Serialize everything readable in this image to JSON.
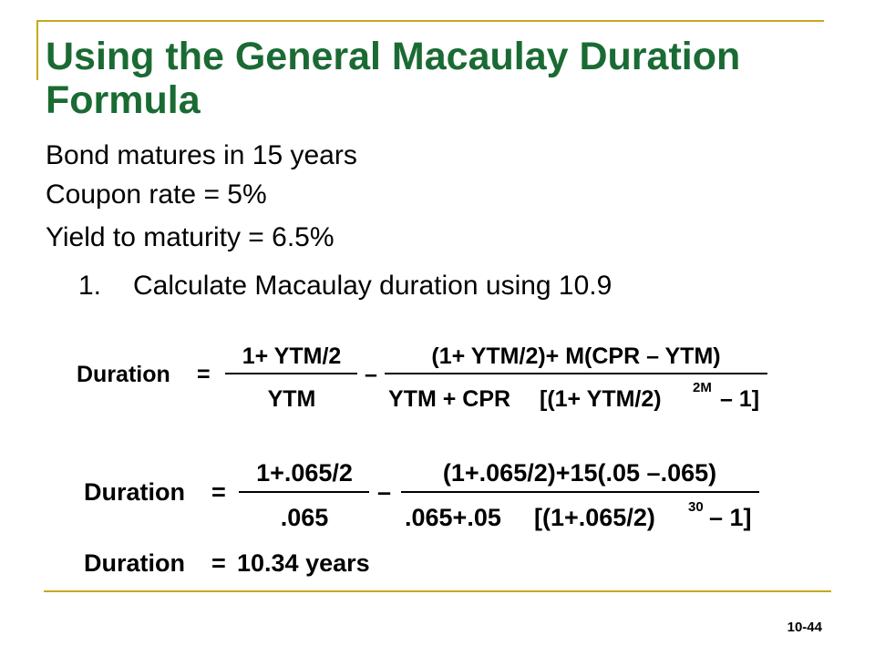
{
  "slide": {
    "title": "Using the General Macaulay Duration Formula",
    "lines": [
      "Bond matures in 15 years",
      "Coupon rate = 5%",
      "Yield to maturity = 6.5%"
    ],
    "step": {
      "number": "1.",
      "text": "Calculate Macaulay duration using 10.9"
    },
    "page_number": "10-44"
  },
  "formula": {
    "lhs": "Duration",
    "eq": "=",
    "minus": "–",
    "frac1_num": "1+ YTM/2",
    "frac1_den": "YTM",
    "frac2_num": "(1+ YTM/2)+ M(CPR – YTM)",
    "frac2_den_left": "YTM + CPR",
    "frac2_den_bracket": "[(1+ YTM/2)",
    "frac2_den_exp": "2M",
    "frac2_den_tail": "– 1]"
  },
  "substituted": {
    "lhs": "Duration",
    "eq": "=",
    "minus": "–",
    "frac1_num": "1+.065/2",
    "frac1_den": ".065",
    "frac2_num": "(1+.065/2)+15(.05 –.065)",
    "frac2_den_left": ".065+.05",
    "frac2_den_bracket": "[(1+.065/2)",
    "frac2_den_exp": "30",
    "frac2_den_tail": "– 1]"
  },
  "result": {
    "lhs": "Duration",
    "eq": "=",
    "value": "10.34 years"
  }
}
